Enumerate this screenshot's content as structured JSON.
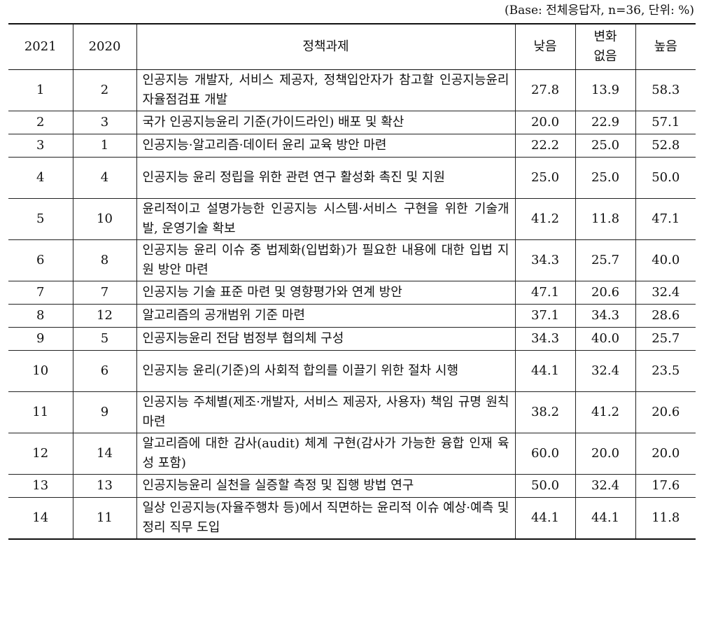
{
  "caption": "(Base: 전체응답자, n=36, 단위: %)",
  "headers": {
    "year_2021": "2021",
    "year_2020": "2020",
    "task": "정책과제",
    "low": "낮음",
    "no_change_1": "변화",
    "no_change_2": "없음",
    "high": "높음"
  },
  "rows": [
    {
      "r2021": "1",
      "r2020": "2",
      "task": "인공지능 개발자, 서비스 제공자, 정책입안자가 참고할 인공지능윤리 자율점검표 개발",
      "low": "27.8",
      "same": "13.9",
      "high": "58.3"
    },
    {
      "r2021": "2",
      "r2020": "3",
      "task": "국가 인공지능윤리 기준(가이드라인) 배포 및 확산",
      "low": "20.0",
      "same": "22.9",
      "high": "57.1"
    },
    {
      "r2021": "3",
      "r2020": "1",
      "task": "인공지능·알고리즘·데이터 윤리 교육 방안 마련",
      "low": "22.2",
      "same": "25.0",
      "high": "52.8"
    },
    {
      "r2021": "4",
      "r2020": "4",
      "task": "인공지능 윤리 정립을 위한 관련 연구 활성화 촉진 및 지원",
      "low": "25.0",
      "same": "25.0",
      "high": "50.0"
    },
    {
      "r2021": "5",
      "r2020": "10",
      "task": "윤리적이고 설명가능한 인공지능 시스템·서비스 구현을 위한 기술개발, 운영기술 확보",
      "low": "41.2",
      "same": "11.8",
      "high": "47.1"
    },
    {
      "r2021": "6",
      "r2020": "8",
      "task": "인공지능 윤리 이슈 중 법제화(입법화)가 필요한 내용에 대한 입법 지원 방안 마련",
      "low": "34.3",
      "same": "25.7",
      "high": "40.0"
    },
    {
      "r2021": "7",
      "r2020": "7",
      "task": "인공지능 기술 표준 마련 및 영향평가와 연계 방안",
      "low": "47.1",
      "same": "20.6",
      "high": "32.4"
    },
    {
      "r2021": "8",
      "r2020": "12",
      "task": "알고리즘의 공개범위 기준 마련",
      "low": "37.1",
      "same": "34.3",
      "high": "28.6"
    },
    {
      "r2021": "9",
      "r2020": "5",
      "task": "인공지능윤리 전담 범정부 협의체 구성",
      "low": "34.3",
      "same": "40.0",
      "high": "25.7"
    },
    {
      "r2021": "10",
      "r2020": "6",
      "task": "인공지능 윤리(기준)의 사회적 합의를 이끌기 위한 절차 시행",
      "low": "44.1",
      "same": "32.4",
      "high": "23.5"
    },
    {
      "r2021": "11",
      "r2020": "9",
      "task": "인공지능 주체별(제조·개발자, 서비스 제공자, 사용자) 책임 규명 원칙 마련",
      "low": "38.2",
      "same": "41.2",
      "high": "20.6"
    },
    {
      "r2021": "12",
      "r2020": "14",
      "task": "알고리즘에 대한 감사(audit) 체계 구현(감사가 가능한 융합 인재 육성 포함)",
      "low": "60.0",
      "same": "20.0",
      "high": "20.0"
    },
    {
      "r2021": "13",
      "r2020": "13",
      "task": "인공지능윤리 실천을 실증할 측정 및 집행 방법 연구",
      "low": "50.0",
      "same": "32.4",
      "high": "17.6"
    },
    {
      "r2021": "14",
      "r2020": "11",
      "task": "일상 인공지능(자율주행차 등)에서 직면하는 윤리적 이슈 예상·예측 및 정리 직무 도입",
      "low": "44.1",
      "same": "44.1",
      "high": "11.8"
    }
  ]
}
